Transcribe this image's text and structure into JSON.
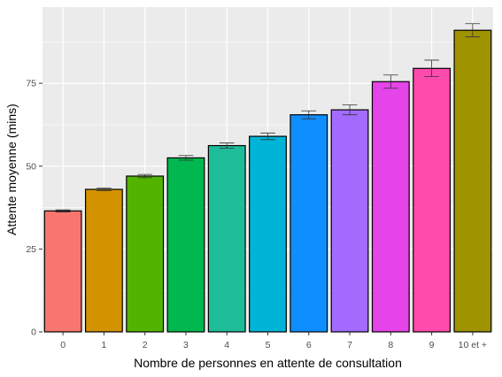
{
  "chart_data": {
    "type": "bar",
    "xlabel": "Nombre de personnes en attente de consultation",
    "ylabel": "Attente moyenne (mins)",
    "categories": [
      "0",
      "1",
      "2",
      "3",
      "4",
      "5",
      "6",
      "7",
      "8",
      "9",
      "10 et +"
    ],
    "values": [
      36.5,
      43.0,
      47.0,
      52.5,
      56.2,
      59.0,
      65.5,
      67.0,
      75.5,
      79.5,
      91.0
    ],
    "error_bars": [
      [
        36.2,
        36.8
      ],
      [
        42.6,
        43.4
      ],
      [
        46.5,
        47.5
      ],
      [
        51.8,
        53.2
      ],
      [
        55.4,
        57.0
      ],
      [
        58.0,
        60.0
      ],
      [
        64.3,
        66.7
      ],
      [
        65.5,
        68.5
      ],
      [
        73.5,
        77.5
      ],
      [
        77.0,
        82.0
      ],
      [
        89.0,
        93.0
      ]
    ],
    "bar_colors": [
      "#F8766D",
      "#D39200",
      "#53B400",
      "#00B84F",
      "#1DBD9A",
      "#00B4D8",
      "#0F8FFF",
      "#A36CFF",
      "#E544E8",
      "#FF4BAC",
      "#A09300"
    ],
    "ylim": [
      0,
      98
    ],
    "yticks": [
      0,
      25,
      50,
      75
    ],
    "ytick_labels": [
      "0",
      "25",
      "50",
      "75"
    ],
    "grid": true,
    "panel_background": "#EBEBEB",
    "grid_color": "#FFFFFF",
    "legend": "none"
  }
}
